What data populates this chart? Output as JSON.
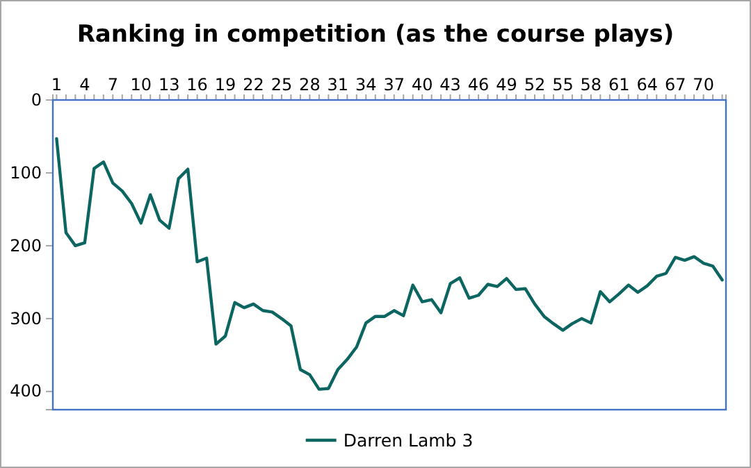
{
  "chart_data": {
    "type": "line",
    "title": "Ranking in competition (as the course plays)",
    "categories": [
      "1",
      null,
      null,
      "4",
      null,
      null,
      "7",
      null,
      null,
      "10",
      null,
      null,
      "13",
      null,
      null,
      "16",
      null,
      null,
      "19",
      null,
      null,
      "22",
      null,
      null,
      "25",
      null,
      null,
      "28",
      null,
      null,
      "31",
      null,
      null,
      "34",
      null,
      null,
      "37",
      null,
      null,
      "40",
      null,
      null,
      "43",
      null,
      null,
      "46",
      null,
      null,
      "49",
      null,
      null,
      "52",
      null,
      null,
      "55",
      null,
      null,
      "58",
      null,
      null,
      "61",
      null,
      null,
      "64",
      null,
      null,
      "67",
      null,
      null,
      "70",
      null,
      null
    ],
    "series": [
      {
        "name": "Darren Lamb 3",
        "color": "#0b6561",
        "values": [
          53,
          182,
          200,
          196,
          94,
          85,
          114,
          125,
          142,
          169,
          130,
          165,
          176,
          108,
          95,
          222,
          217,
          335,
          324,
          278,
          285,
          280,
          289,
          291,
          300,
          310,
          370,
          377,
          397,
          396,
          370,
          356,
          339,
          306,
          297,
          297,
          289,
          296,
          254,
          277,
          274,
          292,
          252,
          244,
          272,
          268,
          253,
          256,
          245,
          260,
          259,
          280,
          297,
          307,
          316,
          307,
          300,
          306,
          263,
          277,
          266,
          254,
          264,
          255,
          242,
          238,
          216,
          220,
          215,
          224,
          228,
          247
        ]
      }
    ],
    "ylim": [
      425,
      0
    ],
    "yticks": [
      0,
      100,
      200,
      300,
      400
    ],
    "grid": false,
    "legend": "bottom",
    "marker": "none",
    "line_style": "solid"
  }
}
